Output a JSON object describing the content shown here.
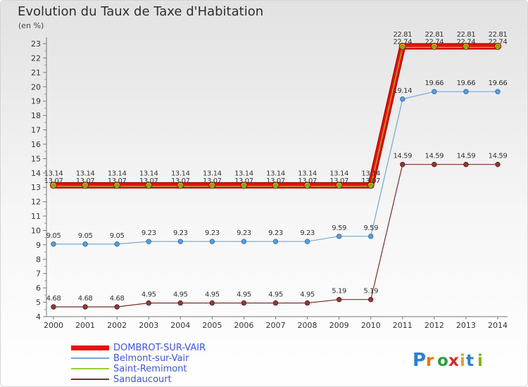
{
  "chart_data": {
    "type": "line",
    "title": "Evolution du Taux de Taxe d'Habitation",
    "subtitle": "(en %)",
    "x": [
      "2000",
      "2001",
      "2002",
      "2003",
      "2004",
      "2005",
      "2006",
      "2007",
      "2008",
      "2009",
      "2010",
      "2011",
      "2012",
      "2013",
      "2014"
    ],
    "y_ticks": [
      "4",
      "5",
      "6",
      "7",
      "8",
      "9",
      "10",
      "11",
      "12",
      "13",
      "14",
      "15",
      "16",
      "17",
      "18",
      "19",
      "20",
      "21",
      "22",
      "23"
    ],
    "ylim": [
      4,
      23
    ],
    "grid": false,
    "legend_position": "bottom-left",
    "series": [
      {
        "name": "DOMBROT-SUR-VAIR",
        "color": "#e8100c",
        "values": [
          13.14,
          13.14,
          13.14,
          13.14,
          13.14,
          13.14,
          13.14,
          13.14,
          13.14,
          13.14,
          13.14,
          22.81,
          22.81,
          22.81,
          22.81
        ],
        "labels": [
          "13.14",
          "13.14",
          "13.14",
          "13.14",
          "13.14",
          "13.14",
          "13.14",
          "13.14",
          "13.14",
          "13.14",
          "13.14",
          "22.81",
          "22.81",
          "22.81",
          "22.81"
        ]
      },
      {
        "name": "Belmont-sur-Vair",
        "color": "#6fa8dc",
        "values": [
          9.05,
          9.05,
          9.05,
          9.23,
          9.23,
          9.23,
          9.23,
          9.23,
          9.23,
          9.59,
          9.59,
          19.14,
          19.66,
          19.66,
          19.66
        ],
        "labels": [
          "9.05",
          "9.05",
          "9.05",
          "9.23",
          "9.23",
          "9.23",
          "9.23",
          "9.23",
          "9.23",
          "9.59",
          "9.59",
          "19.14",
          "19.66",
          "19.66",
          "19.66"
        ]
      },
      {
        "name": "Saint-Remimont",
        "color": "#9acd32",
        "values": [
          13.07,
          13.07,
          13.07,
          13.07,
          13.07,
          13.07,
          13.07,
          13.07,
          13.07,
          13.07,
          13.07,
          22.74,
          22.74,
          22.74,
          22.74
        ],
        "labels": [
          "13.07",
          "13.07",
          "13.07",
          "13.07",
          "13.07",
          "13.07",
          "13.07",
          "13.07",
          "13.07",
          "13.07",
          "13.07",
          "22.74",
          "22.74",
          "22.74",
          "22.74"
        ]
      },
      {
        "name": "Sandaucourt",
        "color": "#7b2c2c",
        "values": [
          4.68,
          4.68,
          4.68,
          4.95,
          4.95,
          4.95,
          4.95,
          4.95,
          4.95,
          5.19,
          5.19,
          14.59,
          14.59,
          14.59,
          14.59
        ],
        "labels": [
          "4.68",
          "4.68",
          "4.68",
          "4.95",
          "4.95",
          "4.95",
          "4.95",
          "4.95",
          "4.95",
          "5.19",
          "5.19",
          "14.59",
          "14.59",
          "14.59",
          "14.59"
        ]
      }
    ]
  },
  "logo": {
    "text": "Proxiti"
  }
}
